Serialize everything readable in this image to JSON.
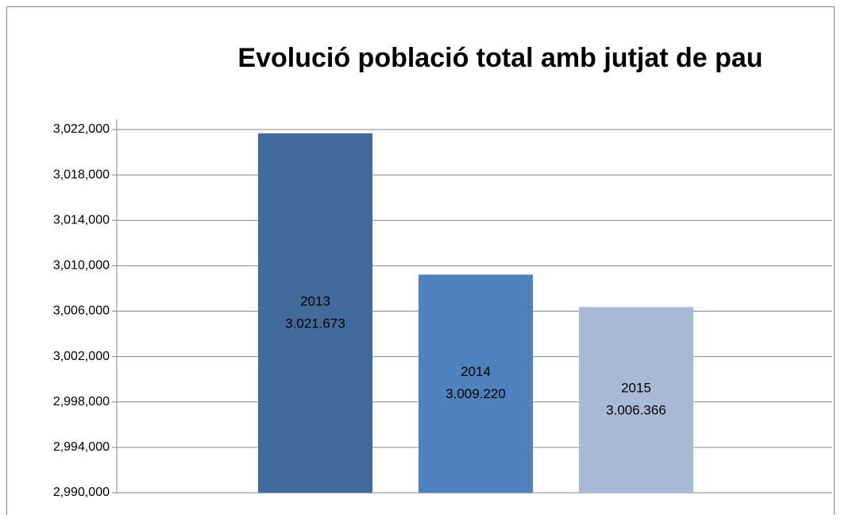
{
  "chart_data": {
    "type": "bar",
    "title": "Evolució població total amb jutjat de pau",
    "categories": [
      "2013",
      "2014",
      "2015"
    ],
    "values": [
      3021673,
      3009220,
      3006366
    ],
    "value_labels": [
      "3.021.673",
      "3.009.220",
      "3.006.366"
    ],
    "colors": [
      "#426a9a",
      "#4f81bd",
      "#a9bad9"
    ],
    "ylim": [
      2990000,
      3022000
    ],
    "yticks": [
      {
        "value": 2990000,
        "label": "2,990,000"
      },
      {
        "value": 2994000,
        "label": "2,994,000"
      },
      {
        "value": 2998000,
        "label": "2,998,000"
      },
      {
        "value": 3002000,
        "label": "3,002,000"
      },
      {
        "value": 3006000,
        "label": "3,006,000"
      },
      {
        "value": 3010000,
        "label": "3,010,000"
      },
      {
        "value": 3014000,
        "label": "3,014,000"
      },
      {
        "value": 3018000,
        "label": "3,018,000"
      },
      {
        "value": 3022000,
        "label": "3,022,000"
      }
    ],
    "grid": true
  }
}
